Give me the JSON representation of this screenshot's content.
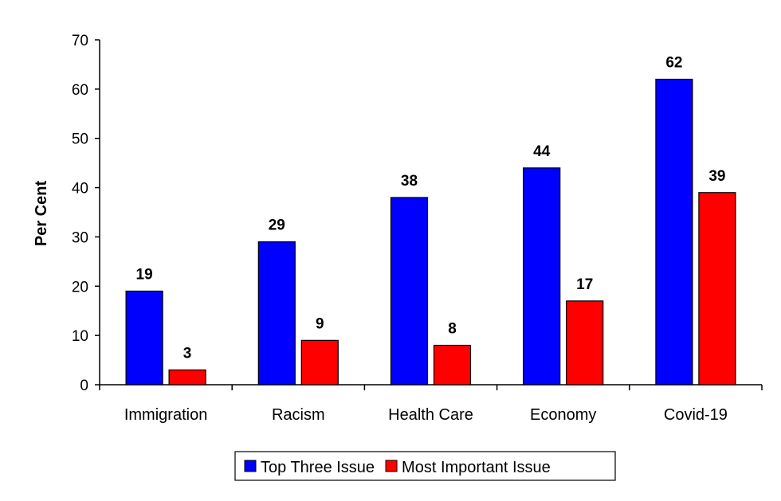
{
  "chart_data": {
    "type": "bar",
    "title": "",
    "xlabel": "",
    "ylabel": "Per Cent",
    "ylim": [
      0,
      70
    ],
    "yticks": [
      0,
      10,
      20,
      30,
      40,
      50,
      60,
      70
    ],
    "grid": false,
    "legend_position": "bottom",
    "categories": [
      "Immigration",
      "Racism",
      "Health Care",
      "Economy",
      "Covid-19"
    ],
    "series": [
      {
        "name": "Top Three Issue",
        "color": "#0000ff",
        "values": [
          19,
          29,
          38,
          44,
          62
        ]
      },
      {
        "name": "Most Important Issue",
        "color": "#ff0000",
        "values": [
          3,
          9,
          8,
          17,
          39
        ]
      }
    ]
  }
}
